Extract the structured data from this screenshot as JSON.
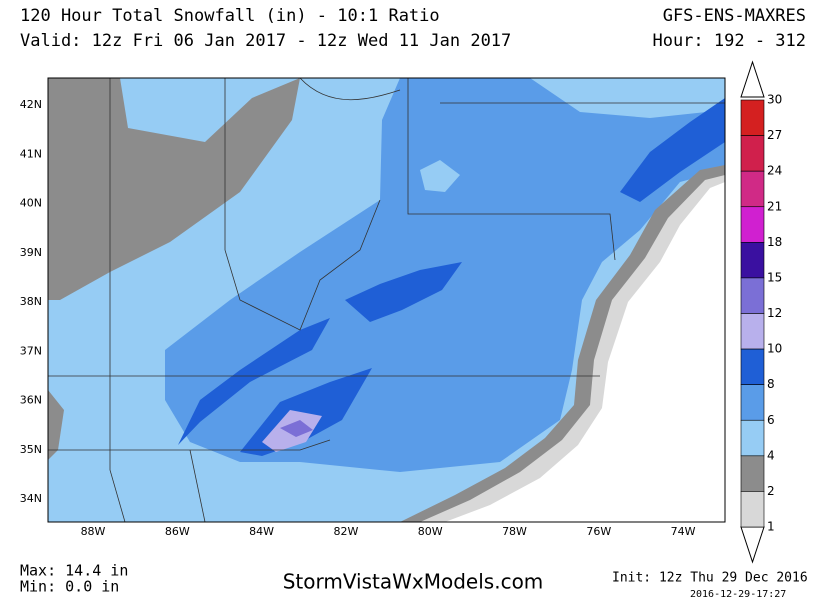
{
  "header": {
    "title": "120 Hour Total Snowfall (in) - 10:1 Ratio",
    "valid": "Valid: 12z Fri 06 Jan 2017 - 12z Wed 11 Jan 2017",
    "model": "GFS-ENS-MAXRES",
    "hour": "Hour: 192 - 312"
  },
  "map": {
    "lat_labels": [
      "42N",
      "41N",
      "40N",
      "39N",
      "38N",
      "37N",
      "36N",
      "35N",
      "34N"
    ],
    "lon_labels": [
      "88W",
      "86W",
      "84W",
      "82W",
      "80W",
      "78W",
      "76W",
      "74W"
    ]
  },
  "colorbar": [
    {
      "label": 30,
      "color": "#d42020"
    },
    {
      "label": 27,
      "color": "#d0204c"
    },
    {
      "label": 24,
      "color": "#d02a86"
    },
    {
      "label": 21,
      "color": "#d020d0"
    },
    {
      "label": 18,
      "color": "#3a10a0"
    },
    {
      "label": 15,
      "color": "#7b6fd6"
    },
    {
      "label": 12,
      "color": "#b8b0ec"
    },
    {
      "label": 10,
      "color": "#1f5fd6"
    },
    {
      "label": 8,
      "color": "#5a9ce8"
    },
    {
      "label": 6,
      "color": "#96ccf4"
    },
    {
      "label": 4,
      "color": "#8c8c8c"
    },
    {
      "label": 2,
      "color": "#d8d8d8"
    },
    {
      "label": 1,
      "color": "#ffffff"
    }
  ],
  "footer": {
    "max": "Max: 14.4 in",
    "min": "Min: 0.0 in",
    "site": "StormVistaWxModels.com",
    "init": "Init: 12z Thu 29 Dec 2016",
    "stamp": "2016-12-29-17:27"
  }
}
